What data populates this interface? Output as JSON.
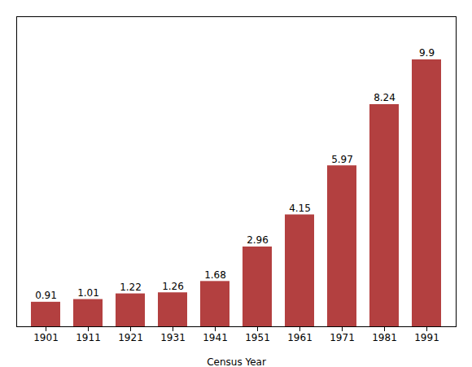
{
  "chart_data": {
    "type": "bar",
    "categories": [
      "1901",
      "1911",
      "1921",
      "1931",
      "1941",
      "1951",
      "1961",
      "1971",
      "1981",
      "1991"
    ],
    "values": [
      0.91,
      1.01,
      1.22,
      1.26,
      1.68,
      2.96,
      4.15,
      5.97,
      8.24,
      9.9
    ],
    "color": "#b34040",
    "xlabel": "Census Year",
    "ylim": [
      0,
      11.5
    ],
    "grid": false,
    "data_labels": true,
    "tick_labels": "x"
  }
}
